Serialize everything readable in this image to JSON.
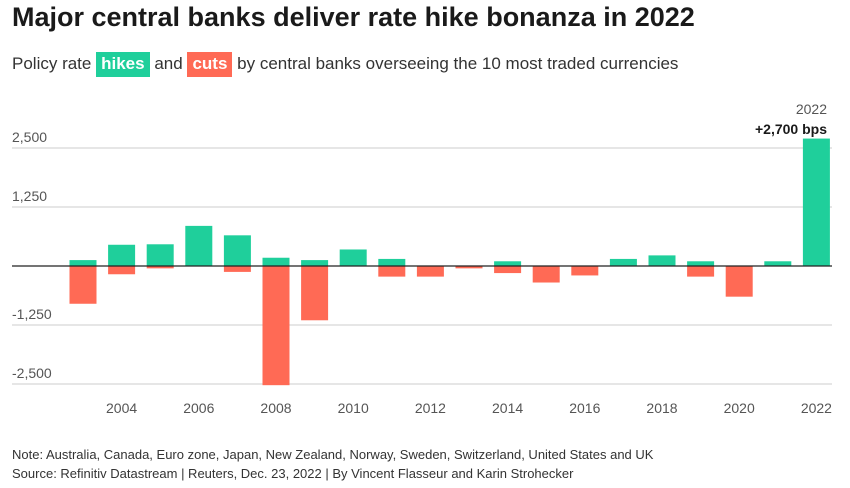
{
  "header": {
    "title": "Major central banks deliver rate hike bonanza in 2022",
    "subtitle_pre": "Policy rate",
    "subtitle_hikes": "hikes",
    "subtitle_mid": "and",
    "subtitle_cuts": "cuts",
    "subtitle_post": "by central banks overseeing the 10 most traded currencies"
  },
  "colors": {
    "hikes": "#1fcf9b",
    "cuts": "#ff6a55",
    "grid": "#cccccc",
    "zero_line": "#222222",
    "axis_text": "#555555"
  },
  "chart_data": {
    "type": "bar",
    "categories": [
      2003,
      2004,
      2005,
      2006,
      2007,
      2008,
      2009,
      2010,
      2011,
      2012,
      2013,
      2014,
      2015,
      2016,
      2017,
      2018,
      2019,
      2020,
      2021,
      2022
    ],
    "series": [
      {
        "name": "hikes",
        "values": [
          125,
          450,
          460,
          850,
          650,
          175,
          125,
          350,
          150,
          0,
          0,
          100,
          0,
          0,
          150,
          225,
          100,
          0,
          100,
          2700
        ]
      },
      {
        "name": "cuts",
        "values": [
          -800,
          -175,
          -50,
          0,
          -125,
          -2525,
          -1150,
          0,
          -225,
          -225,
          -50,
          -150,
          -350,
          -200,
          0,
          0,
          -225,
          -650,
          0,
          0
        ]
      }
    ],
    "ylim": [
      -2500,
      2700
    ],
    "yticks": [
      {
        "value": 2500,
        "label": "2,500"
      },
      {
        "value": 1250,
        "label": "1,250"
      },
      {
        "value": -1250,
        "label": "-1,250"
      },
      {
        "value": -2500,
        "label": "-2,500"
      }
    ],
    "xticks": [
      {
        "value": 2004,
        "label": "2004"
      },
      {
        "value": 2006,
        "label": "2006"
      },
      {
        "value": 2008,
        "label": "2008"
      },
      {
        "value": 2010,
        "label": "2010"
      },
      {
        "value": 2012,
        "label": "2012"
      },
      {
        "value": 2014,
        "label": "2014"
      },
      {
        "value": 2016,
        "label": "2016"
      },
      {
        "value": 2018,
        "label": "2018"
      },
      {
        "value": 2020,
        "label": "2020"
      },
      {
        "value": 2022,
        "label": "2022"
      }
    ],
    "annotation": {
      "year_label": "2022",
      "value_label": "+2,700 bps"
    },
    "grid": true
  },
  "footer": {
    "note": "Note: Australia, Canada, Euro zone, Japan, New Zealand, Norway, Sweden, Switzerland, United States and UK",
    "source": "Source: Refinitiv Datastream | Reuters, Dec. 23, 2022 | By Vincent Flasseur and Karin Strohecker"
  }
}
